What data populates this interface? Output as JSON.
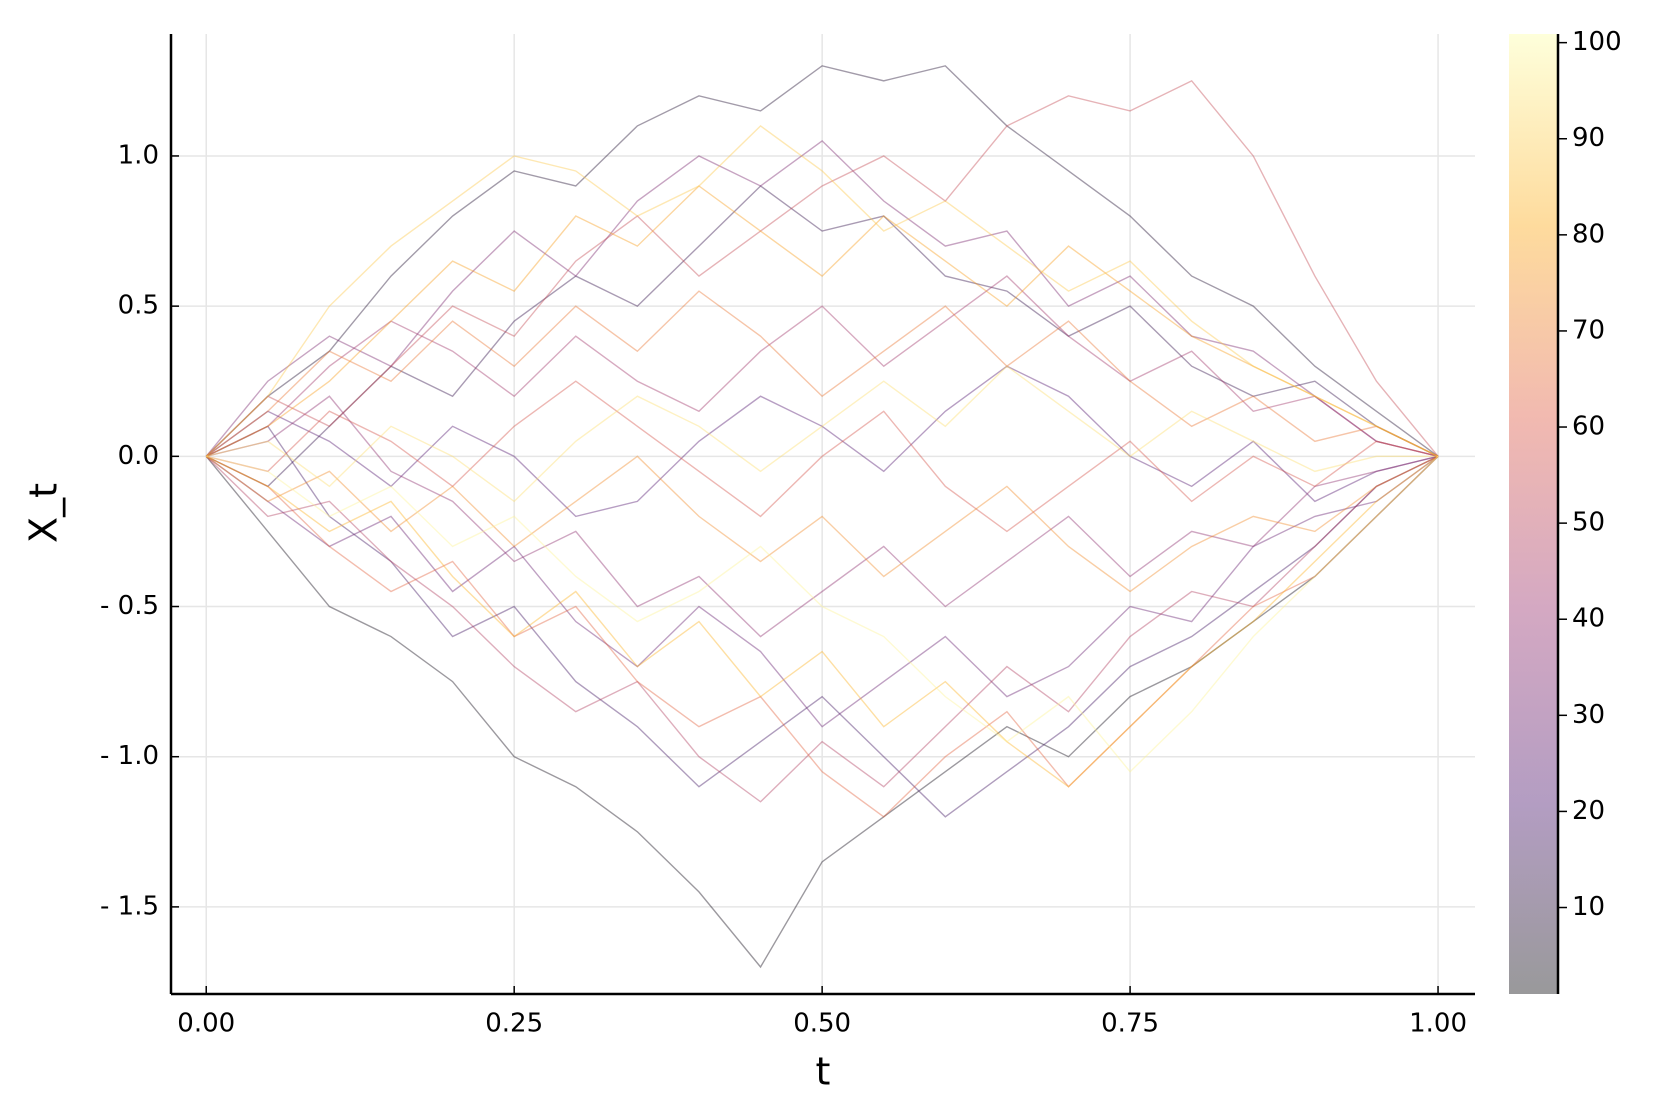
{
  "chart_data": {
    "type": "line",
    "x_label": "t",
    "y_label": "X_t",
    "xlim": [
      -0.0286,
      1.03
    ],
    "ylim": [
      -1.79,
      1.406
    ],
    "xticks": [
      {
        "value": 0,
        "label": "0.00"
      },
      {
        "value": 0.25,
        "label": "0.25"
      },
      {
        "value": 0.5,
        "label": "0.50"
      },
      {
        "value": 0.75,
        "label": "0.75"
      },
      {
        "value": 1,
        "label": "1.00"
      }
    ],
    "yticks": [
      {
        "value": -1.5,
        "label": "- 1.5"
      },
      {
        "value": -1,
        "label": "- 1.0"
      },
      {
        "value": -0.5,
        "label": "- 0.5"
      },
      {
        "value": 0,
        "label": "0.0"
      },
      0.5,
      {
        "value": 1,
        "label": "1.0"
      }
    ],
    "grid": true,
    "line_alpha": 0.4,
    "colormap": [
      "#000004",
      "#420a68",
      "#932667",
      "#dd513a",
      "#fca50a",
      "#fcffa4"
    ],
    "colorbar": {
      "lim": [
        1,
        100.9
      ],
      "ticks": [
        10,
        20,
        30,
        40,
        50,
        60,
        70,
        80,
        90,
        100
      ]
    },
    "x": [
      0,
      0.05,
      0.1,
      0.15,
      0.2,
      0.25,
      0.3,
      0.35,
      0.4,
      0.45,
      0.5,
      0.55,
      0.6,
      0.65,
      0.7,
      0.75,
      0.8,
      0.85,
      0.9,
      0.95,
      1
    ],
    "series": [
      {
        "z": 3,
        "values": [
          0,
          -0.25,
          -0.5,
          -0.6,
          -0.75,
          -1.0,
          -1.1,
          -1.25,
          -1.45,
          -1.7,
          -1.35,
          -1.2,
          -1.05,
          -0.9,
          -1.0,
          -0.8,
          -0.7,
          -0.55,
          -0.4,
          -0.2,
          0
        ]
      },
      {
        "z": 8,
        "values": [
          0,
          0.2,
          0.35,
          0.6,
          0.8,
          0.95,
          0.9,
          1.1,
          1.2,
          1.15,
          1.3,
          1.25,
          1.3,
          1.1,
          0.95,
          0.8,
          0.6,
          0.5,
          0.3,
          0.15,
          0
        ]
      },
      {
        "z": 13,
        "values": [
          0,
          -0.1,
          0.1,
          0.3,
          0.2,
          0.45,
          0.6,
          0.5,
          0.7,
          0.9,
          0.75,
          0.8,
          0.6,
          0.55,
          0.4,
          0.5,
          0.3,
          0.2,
          0.25,
          0.1,
          0
        ]
      },
      {
        "z": 18,
        "values": [
          0,
          0.1,
          -0.2,
          -0.35,
          -0.6,
          -0.5,
          -0.75,
          -0.9,
          -1.1,
          -0.95,
          -0.8,
          -1.0,
          -1.2,
          -1.05,
          -0.9,
          -0.7,
          -0.6,
          -0.45,
          -0.3,
          -0.1,
          0
        ]
      },
      {
        "z": 23,
        "values": [
          0,
          0.15,
          0.05,
          -0.1,
          0.1,
          0.0,
          -0.2,
          -0.15,
          0.05,
          0.2,
          0.1,
          -0.05,
          0.15,
          0.3,
          0.2,
          0.0,
          -0.1,
          0.05,
          -0.15,
          -0.05,
          0
        ]
      },
      {
        "z": 28,
        "values": [
          0,
          -0.15,
          -0.3,
          -0.2,
          -0.45,
          -0.3,
          -0.55,
          -0.7,
          -0.5,
          -0.65,
          -0.9,
          -0.75,
          -0.6,
          -0.8,
          -0.7,
          -0.5,
          -0.55,
          -0.3,
          -0.2,
          -0.15,
          0
        ]
      },
      {
        "z": 33,
        "values": [
          0,
          0.25,
          0.4,
          0.3,
          0.55,
          0.75,
          0.6,
          0.85,
          1.0,
          0.9,
          1.05,
          0.85,
          0.7,
          0.75,
          0.5,
          0.6,
          0.4,
          0.35,
          0.2,
          0.05,
          0
        ]
      },
      {
        "z": 38,
        "values": [
          0,
          0.05,
          0.2,
          -0.05,
          -0.15,
          -0.35,
          -0.25,
          -0.5,
          -0.4,
          -0.6,
          -0.45,
          -0.3,
          -0.5,
          -0.35,
          -0.2,
          -0.4,
          -0.25,
          -0.3,
          -0.1,
          -0.05,
          0
        ]
      },
      {
        "z": 43,
        "values": [
          0,
          0.1,
          0.3,
          0.45,
          0.35,
          0.2,
          0.4,
          0.25,
          0.15,
          0.35,
          0.5,
          0.3,
          0.45,
          0.6,
          0.4,
          0.25,
          0.35,
          0.15,
          0.2,
          0.05,
          0
        ]
      },
      {
        "z": 48,
        "values": [
          0,
          -0.2,
          -0.15,
          -0.35,
          -0.5,
          -0.7,
          -0.85,
          -0.75,
          -1.0,
          -1.15,
          -0.95,
          -1.1,
          -0.9,
          -0.7,
          -0.85,
          -0.6,
          -0.45,
          -0.5,
          -0.3,
          -0.1,
          0
        ]
      },
      {
        "z": 53,
        "values": [
          0,
          0.2,
          0.1,
          0.3,
          0.5,
          0.4,
          0.65,
          0.8,
          0.6,
          0.75,
          0.9,
          1.0,
          0.85,
          1.1,
          1.2,
          1.15,
          1.25,
          1.0,
          0.6,
          0.25,
          0
        ]
      },
      {
        "z": 58,
        "values": [
          0,
          -0.05,
          0.15,
          0.05,
          -0.1,
          0.1,
          0.25,
          0.1,
          -0.05,
          -0.2,
          0.0,
          0.15,
          -0.1,
          -0.25,
          -0.1,
          0.05,
          -0.15,
          0.0,
          -0.1,
          0.05,
          0
        ]
      },
      {
        "z": 63,
        "values": [
          0,
          -0.1,
          -0.3,
          -0.45,
          -0.35,
          -0.6,
          -0.5,
          -0.75,
          -0.9,
          -0.8,
          -1.05,
          -1.2,
          -1.0,
          -0.85,
          -1.1,
          -0.9,
          -0.7,
          -0.5,
          -0.4,
          -0.2,
          0
        ]
      },
      {
        "z": 68,
        "values": [
          0,
          0.15,
          0.35,
          0.25,
          0.45,
          0.3,
          0.5,
          0.35,
          0.55,
          0.4,
          0.2,
          0.35,
          0.5,
          0.3,
          0.45,
          0.25,
          0.1,
          0.2,
          0.05,
          0.1,
          0
        ]
      },
      {
        "z": 73,
        "values": [
          0,
          -0.15,
          -0.05,
          -0.25,
          -0.1,
          -0.3,
          -0.15,
          0.0,
          -0.2,
          -0.35,
          -0.2,
          -0.4,
          -0.25,
          -0.1,
          -0.3,
          -0.45,
          -0.3,
          -0.2,
          -0.25,
          -0.1,
          0
        ]
      },
      {
        "z": 78,
        "values": [
          0,
          0.1,
          0.25,
          0.45,
          0.65,
          0.55,
          0.8,
          0.7,
          0.9,
          0.75,
          0.6,
          0.8,
          0.65,
          0.5,
          0.7,
          0.55,
          0.4,
          0.3,
          0.2,
          0.1,
          0
        ]
      },
      {
        "z": 83,
        "values": [
          0,
          -0.1,
          -0.25,
          -0.15,
          -0.4,
          -0.6,
          -0.45,
          -0.7,
          -0.55,
          -0.8,
          -0.65,
          -0.9,
          -0.75,
          -0.95,
          -1.1,
          -0.9,
          -0.7,
          -0.55,
          -0.35,
          -0.15,
          0
        ]
      },
      {
        "z": 88,
        "values": [
          0,
          0.2,
          0.5,
          0.7,
          0.85,
          1.0,
          0.95,
          0.8,
          0.9,
          1.1,
          0.95,
          0.75,
          0.85,
          0.7,
          0.55,
          0.65,
          0.45,
          0.3,
          0.2,
          0.1,
          0
        ]
      },
      {
        "z": 93,
        "values": [
          0,
          0.05,
          -0.1,
          0.1,
          0.0,
          -0.15,
          0.05,
          0.2,
          0.1,
          -0.05,
          0.1,
          0.25,
          0.1,
          0.3,
          0.15,
          0.0,
          0.15,
          0.05,
          -0.05,
          0.0,
          0
        ]
      },
      {
        "z": 98,
        "values": [
          0,
          -0.05,
          -0.2,
          -0.1,
          -0.3,
          -0.2,
          -0.4,
          -0.55,
          -0.45,
          -0.3,
          -0.5,
          -0.6,
          -0.8,
          -0.95,
          -0.8,
          -1.05,
          -0.85,
          -0.6,
          -0.4,
          -0.2,
          0
        ]
      }
    ]
  }
}
